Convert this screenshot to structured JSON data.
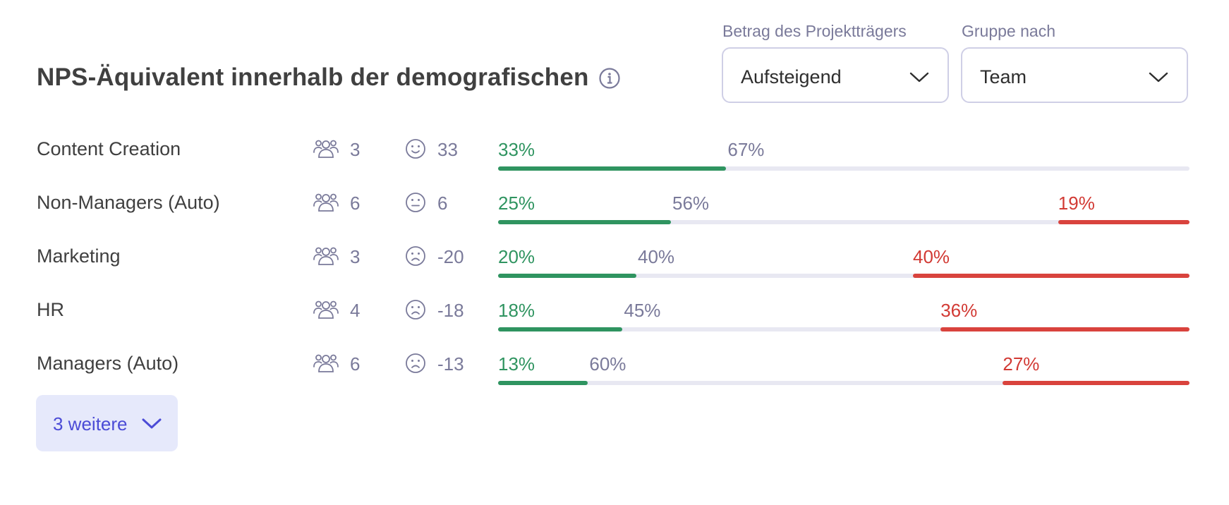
{
  "header": {
    "title": "NPS-Äquivalent innerhalb der demografischen"
  },
  "sort": {
    "label": "Betrag des Projektträgers",
    "value": "Aufsteigend"
  },
  "group": {
    "label": "Gruppe nach",
    "value": "Team"
  },
  "colors": {
    "promoter": "#2f9460",
    "detractor": "#d9433d",
    "passive_track": "#e8e8f2",
    "accent": "#4b4bd6"
  },
  "rows": [
    {
      "label": "Content Creation",
      "count": "3",
      "score": "33",
      "mood": "happy",
      "promoters": "33%",
      "passives": "67%",
      "detractors": "",
      "promoter_value": 33,
      "passive_value": 67,
      "detractor_value": 0
    },
    {
      "label": "Non-Managers (Auto)",
      "count": "6",
      "score": "6",
      "mood": "neutral",
      "promoters": "25%",
      "passives": "56%",
      "detractors": "19%",
      "promoter_value": 25,
      "passive_value": 56,
      "detractor_value": 19
    },
    {
      "label": "Marketing",
      "count": "3",
      "score": "-20",
      "mood": "sad",
      "promoters": "20%",
      "passives": "40%",
      "detractors": "40%",
      "promoter_value": 20,
      "passive_value": 40,
      "detractor_value": 40
    },
    {
      "label": "HR",
      "count": "4",
      "score": "-18",
      "mood": "sad",
      "promoters": "18%",
      "passives": "45%",
      "detractors": "36%",
      "promoter_value": 18,
      "passive_value": 45,
      "detractor_value": 36
    },
    {
      "label": "Managers (Auto)",
      "count": "6",
      "score": "-13",
      "mood": "sad",
      "promoters": "13%",
      "passives": "60%",
      "detractors": "27%",
      "promoter_value": 13,
      "passive_value": 60,
      "detractor_value": 27
    }
  ],
  "more_button": {
    "label": "3 weitere"
  }
}
